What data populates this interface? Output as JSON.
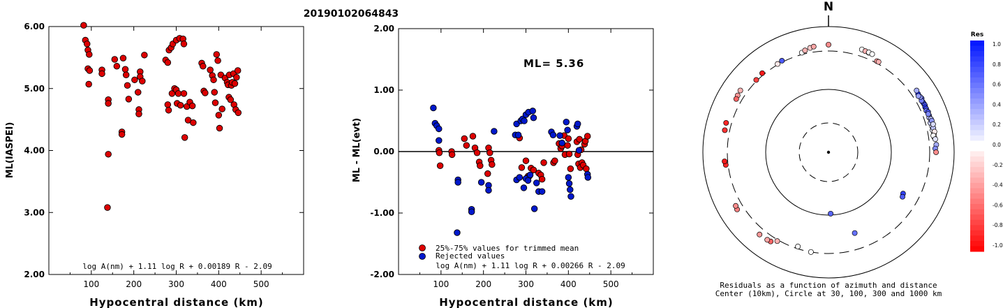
{
  "title": "20190102064843",
  "left_panel": {
    "ylabel": "ML(IASPEI)",
    "xlabel": "Hypocentral distance (km)",
    "formula": "log A(nm) + 1.11 log R + 0.00189 R - 2.09",
    "xlim": [
      0,
      600
    ],
    "ylim": [
      2.0,
      6.0
    ],
    "xticks": [
      "100",
      "200",
      "300",
      "400",
      "500"
    ],
    "yticks": [
      "2.00",
      "3.00",
      "4.00",
      "5.00",
      "6.00"
    ],
    "point_color": "#dd0000",
    "chart_data": {
      "type": "scatter",
      "points": [
        [
          82,
          6.02
        ],
        [
          86,
          5.78
        ],
        [
          90,
          5.72
        ],
        [
          92,
          5.62
        ],
        [
          95,
          5.55
        ],
        [
          92,
          5.32
        ],
        [
          96,
          5.29
        ],
        [
          94,
          5.07
        ],
        [
          125,
          5.3
        ],
        [
          125,
          5.24
        ],
        [
          140,
          4.82
        ],
        [
          140,
          4.76
        ],
        [
          140,
          3.94
        ],
        [
          138,
          3.08
        ],
        [
          155,
          5.47
        ],
        [
          160,
          5.36
        ],
        [
          175,
          5.49
        ],
        [
          172,
          4.3
        ],
        [
          172,
          4.26
        ],
        [
          180,
          5.31
        ],
        [
          182,
          5.22
        ],
        [
          185,
          5.05
        ],
        [
          188,
          4.83
        ],
        [
          202,
          5.14
        ],
        [
          210,
          4.94
        ],
        [
          215,
          5.27
        ],
        [
          215,
          5.19
        ],
        [
          220,
          5.12
        ],
        [
          212,
          4.66
        ],
        [
          212,
          4.59
        ],
        [
          225,
          5.54
        ],
        [
          275,
          5.46
        ],
        [
          280,
          5.42
        ],
        [
          283,
          5.62
        ],
        [
          288,
          5.66
        ],
        [
          292,
          5.72
        ],
        [
          300,
          5.78
        ],
        [
          308,
          5.81
        ],
        [
          316,
          5.8
        ],
        [
          318,
          5.72
        ],
        [
          280,
          4.74
        ],
        [
          282,
          4.65
        ],
        [
          290,
          4.92
        ],
        [
          296,
          5.0
        ],
        [
          300,
          4.98
        ],
        [
          302,
          4.76
        ],
        [
          305,
          4.92
        ],
        [
          310,
          4.73
        ],
        [
          318,
          4.92
        ],
        [
          320,
          4.21
        ],
        [
          325,
          4.71
        ],
        [
          328,
          4.49
        ],
        [
          332,
          4.78
        ],
        [
          338,
          4.72
        ],
        [
          340,
          4.45
        ],
        [
          360,
          5.41
        ],
        [
          363,
          5.36
        ],
        [
          365,
          4.96
        ],
        [
          368,
          4.93
        ],
        [
          380,
          5.3
        ],
        [
          385,
          5.21
        ],
        [
          388,
          5.14
        ],
        [
          390,
          4.94
        ],
        [
          392,
          4.77
        ],
        [
          395,
          5.55
        ],
        [
          398,
          5.45
        ],
        [
          400,
          4.57
        ],
        [
          402,
          4.36
        ],
        [
          405,
          5.22
        ],
        [
          408,
          4.67
        ],
        [
          415,
          5.17
        ],
        [
          420,
          5.1
        ],
        [
          422,
          5.06
        ],
        [
          424,
          4.86
        ],
        [
          425,
          5.22
        ],
        [
          428,
          4.82
        ],
        [
          430,
          5.05
        ],
        [
          432,
          5.1
        ],
        [
          435,
          5.24
        ],
        [
          436,
          4.74
        ],
        [
          438,
          5.08
        ],
        [
          440,
          4.66
        ],
        [
          442,
          5.18
        ],
        [
          445,
          5.29
        ],
        [
          446,
          4.61
        ]
      ]
    }
  },
  "middle_panel": {
    "ylabel": "ML - ML(evt)",
    "xlabel": "Hypocentral distance (km)",
    "ml_label": "ML= 5.36",
    "formula": "log A(nm) + 1.11 log R + 0.00266 R - 2.09",
    "xlim": [
      0,
      600
    ],
    "ylim": [
      -2.0,
      2.0
    ],
    "xticks": [
      "100",
      "200",
      "300",
      "400",
      "500"
    ],
    "yticks": [
      "-2.00",
      "-1.00",
      "0.00",
      "1.00",
      "2.00"
    ],
    "legend": {
      "trimmed": "25%-75% values for trimmed mean",
      "rejected": "Rejected values"
    },
    "red_color": "#dd0000",
    "blue_color": "#0018cc",
    "chart_data": {
      "type": "scatter",
      "series": [
        {
          "name": "25%-75% values for trimmed mean",
          "points": [
            [
              95,
              0.02
            ],
            [
              96,
              -0.02
            ],
            [
              98,
              -0.23
            ],
            [
              125,
              0.0
            ],
            [
              126,
              -0.05
            ],
            [
              155,
              0.21
            ],
            [
              160,
              0.1
            ],
            [
              175,
              0.25
            ],
            [
              180,
              0.06
            ],
            [
              185,
              -0.02
            ],
            [
              190,
              -0.17
            ],
            [
              192,
              -0.23
            ],
            [
              210,
              -0.36
            ],
            [
              212,
              0.06
            ],
            [
              215,
              -0.02
            ],
            [
              218,
              -0.14
            ],
            [
              220,
              -0.21
            ],
            [
              285,
              0.22
            ],
            [
              290,
              -0.26
            ],
            [
              300,
              -0.15
            ],
            [
              305,
              -0.4
            ],
            [
              308,
              -0.4
            ],
            [
              312,
              -0.27
            ],
            [
              318,
              -0.3
            ],
            [
              330,
              -0.35
            ],
            [
              335,
              -0.38
            ],
            [
              338,
              -0.45
            ],
            [
              342,
              -0.18
            ],
            [
              365,
              -0.18
            ],
            [
              368,
              -0.15
            ],
            [
              378,
              0.13
            ],
            [
              382,
              0.05
            ],
            [
              385,
              0.09
            ],
            [
              390,
              0.26
            ],
            [
              392,
              -0.05
            ],
            [
              398,
              0.1
            ],
            [
              400,
              0.21
            ],
            [
              402,
              -0.04
            ],
            [
              405,
              -0.28
            ],
            [
              420,
              0.16
            ],
            [
              422,
              -0.05
            ],
            [
              424,
              -0.2
            ],
            [
              426,
              0.2
            ],
            [
              428,
              -0.26
            ],
            [
              430,
              0.03
            ],
            [
              432,
              -0.18
            ],
            [
              435,
              -0.22
            ],
            [
              438,
              0.12
            ],
            [
              440,
              0.17
            ],
            [
              442,
              -0.28
            ],
            [
              445,
              0.25
            ]
          ]
        },
        {
          "name": "Rejected values",
          "points": [
            [
              82,
              0.71
            ],
            [
              86,
              0.46
            ],
            [
              90,
              0.42
            ],
            [
              95,
              0.37
            ],
            [
              95,
              0.18
            ],
            [
              140,
              -0.46
            ],
            [
              140,
              -0.5
            ],
            [
              138,
              -1.32
            ],
            [
              172,
              -0.94
            ],
            [
              172,
              -0.98
            ],
            [
              195,
              -0.5
            ],
            [
              212,
              -0.55
            ],
            [
              212,
              -0.63
            ],
            [
              225,
              0.33
            ],
            [
              275,
              0.27
            ],
            [
              278,
              0.45
            ],
            [
              282,
              0.27
            ],
            [
              288,
              0.5
            ],
            [
              292,
              0.53
            ],
            [
              296,
              0.5
            ],
            [
              300,
              0.6
            ],
            [
              306,
              0.64
            ],
            [
              316,
              0.66
            ],
            [
              318,
              0.55
            ],
            [
              278,
              -0.46
            ],
            [
              285,
              -0.42
            ],
            [
              295,
              -0.59
            ],
            [
              300,
              -0.44
            ],
            [
              305,
              -0.47
            ],
            [
              310,
              -0.38
            ],
            [
              320,
              -0.93
            ],
            [
              325,
              -0.51
            ],
            [
              330,
              -0.65
            ],
            [
              338,
              -0.65
            ],
            [
              360,
              0.32
            ],
            [
              364,
              0.27
            ],
            [
              380,
              0.26
            ],
            [
              385,
              0.14
            ],
            [
              395,
              0.48
            ],
            [
              398,
              0.35
            ],
            [
              400,
              -0.42
            ],
            [
              402,
              -0.52
            ],
            [
              404,
              -0.62
            ],
            [
              406,
              -0.73
            ],
            [
              420,
              0.41
            ],
            [
              422,
              0.45
            ],
            [
              425,
              0.02
            ],
            [
              445,
              -0.37
            ],
            [
              446,
              -0.42
            ]
          ]
        }
      ]
    }
  },
  "right_panel": {
    "north_label": "N",
    "caption_line1": "Residuals as a function of azimuth and distance",
    "caption_line2": "Center (10km), Circle at 30, 100, 300 and 1000 km",
    "colorbar_title": "Res",
    "colorbar_ticks": [
      "1.0",
      "0.8",
      "0.6",
      "0.4",
      "0.2",
      "0.0",
      "-0.2",
      "-0.4",
      "-0.6",
      "-0.8",
      "-1.0"
    ],
    "chart_data": {
      "type": "scatter",
      "coordinate_system": "polar azimuth (deg from N) / distance (km)",
      "points": [
        [
          62,
          395,
          0.75
        ],
        [
          63,
          400,
          0.8
        ],
        [
          64,
          405,
          0.7
        ],
        [
          60,
          410,
          0.65
        ],
        [
          61,
          388,
          0.55
        ],
        [
          65,
          392,
          0.85
        ],
        [
          66,
          398,
          0.75
        ],
        [
          59,
          402,
          0.45
        ],
        [
          67,
          385,
          0.6
        ],
        [
          68,
          408,
          0.7
        ],
        [
          57,
          396,
          0.9
        ],
        [
          58,
          380,
          0.4
        ],
        [
          70,
          402,
          0.55
        ],
        [
          71,
          390,
          0.3
        ],
        [
          72,
          412,
          0.25
        ],
        [
          69,
          395,
          0.5
        ],
        [
          55,
          410,
          0.35
        ],
        [
          74,
          380,
          0.2
        ],
        [
          76,
          395,
          0.1
        ],
        [
          78,
          388,
          0.05
        ],
        [
          80,
          402,
          -0.05
        ],
        [
          82,
          396,
          -0.1
        ],
        [
          73,
          418,
          0.45
        ],
        [
          77,
          410,
          0.25
        ],
        [
          79,
          418,
          -0.08
        ],
        [
          81,
          382,
          0.0
        ],
        [
          75,
          425,
          0.15
        ],
        [
          83,
          410,
          0.12
        ],
        [
          86,
          420,
          0.35
        ],
        [
          88,
          395,
          0.5
        ],
        [
          90,
          410,
          -0.45
        ],
        [
          119,
          190,
          0.8
        ],
        [
          121,
          196,
          0.7
        ],
        [
          178,
          95,
          0.65
        ],
        [
          198,
          282,
          0.0
        ],
        [
          162,
          188,
          0.6
        ],
        [
          190,
          300,
          0.0
        ],
        [
          210,
          320,
          -0.3
        ],
        [
          213,
          385,
          -0.6
        ],
        [
          220,
          405,
          -0.4
        ],
        [
          215,
          395,
          -0.35
        ],
        [
          238,
          415,
          -0.5
        ],
        [
          240,
          402,
          -0.45
        ],
        [
          263,
          336,
          -0.85
        ],
        [
          265,
          350,
          -0.9
        ],
        [
          282,
          380,
          -0.8
        ],
        [
          286,
          390,
          -0.85
        ],
        [
          302,
          402,
          -0.4
        ],
        [
          305,
          412,
          -0.3
        ],
        [
          300,
          390,
          -0.6
        ],
        [
          315,
          315,
          -0.75
        ],
        [
          320,
          330,
          -0.9
        ],
        [
          330,
          310,
          -0.1
        ],
        [
          333,
          322,
          0.7
        ],
        [
          345,
          328,
          0.0
        ],
        [
          347,
          352,
          -0.3
        ],
        [
          350,
          378,
          -0.2
        ],
        [
          352,
          392,
          -0.35
        ],
        [
          0,
          410,
          -0.45
        ],
        [
          18,
          420,
          0.0
        ],
        [
          20,
          410,
          -0.3
        ],
        [
          22,
          405,
          -0.2
        ],
        [
          22,
          412,
          0.0
        ],
        [
          24,
          406,
          0.0
        ],
        [
          28,
          330,
          -0.4
        ],
        [
          29,
          332,
          -0.3
        ]
      ]
    }
  }
}
